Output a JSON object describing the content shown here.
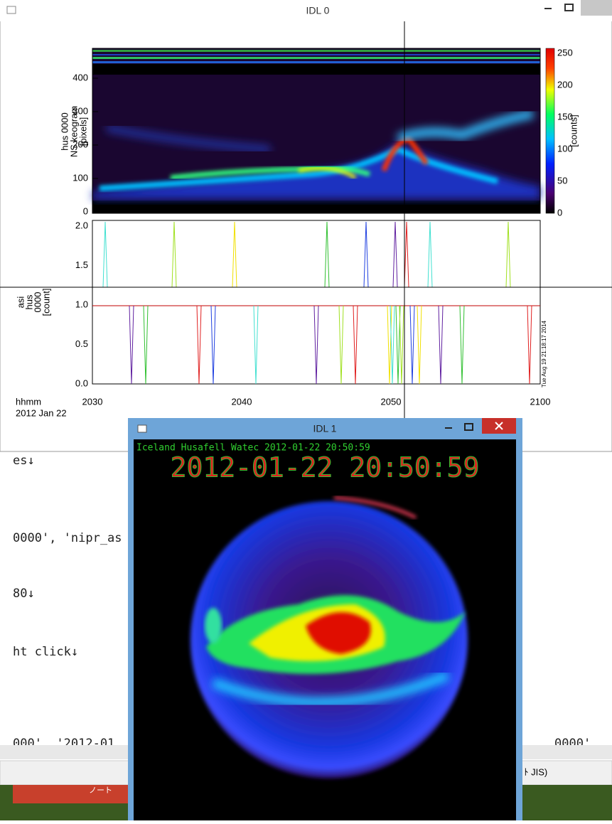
{
  "idl0": {
    "title": "IDL 0",
    "keogram": {
      "ylabel": [
        "hus 0000",
        "NS keogram",
        "[pixels]"
      ],
      "yticks": [
        0,
        100,
        200,
        300,
        400
      ],
      "colorbar_ticks": [
        0,
        50,
        100,
        150,
        200,
        250
      ],
      "colorbar_label": "[counts]"
    },
    "counts_panel": {
      "ylabel": [
        "asi",
        "hus",
        "0000",
        "[count]"
      ],
      "yticks": [
        {
          "value": 0,
          "label": "0.0"
        },
        {
          "value": 0.5,
          "label": "0.5"
        },
        {
          "value": 1,
          "label": "1.0"
        },
        {
          "value": 1.5,
          "label": "1.5"
        },
        {
          "value": 2,
          "label": "2.0"
        }
      ],
      "timestamp": "Tue Aug 19 21:18:17 2014"
    },
    "xaxis": {
      "unit": "hhmm",
      "date": "2012 Jan 22",
      "ticks": [
        "2030",
        "2040",
        "2050",
        "2100"
      ]
    }
  },
  "idl1": {
    "title": "IDL 1",
    "station": "Iceland Husafell Watec 2012-01-22 20:50:59",
    "timestamp": "2012-01-22 20:50:59"
  },
  "editor": {
    "lines": [
      "es↓",
      "0000', 'nipr_as",
      "80↓",
      "ht click↓",
      "000',  '2012-01"
    ],
    "right_fragment": "0000'",
    "status": "ﾄ JIS)",
    "taskbar": "ノート"
  }
}
